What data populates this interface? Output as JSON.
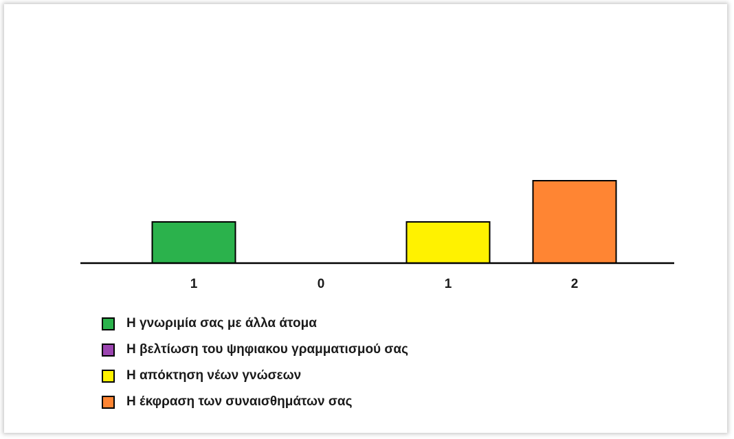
{
  "chart_data": {
    "type": "bar",
    "categories": [
      "Η γνωριμία σας με άλλα άτομα",
      "Η βελτίωση του ψηφιακου γραμματισμού σας",
      "Η απόκτηση νέων γνώσεων",
      "Η έκφραση των συναισθημάτων σας"
    ],
    "values": [
      1,
      0,
      1,
      2
    ],
    "tick_labels": [
      "1",
      "0",
      "1",
      "2"
    ],
    "colors": [
      "#2bb24c",
      "#9b45b0",
      "#fff200",
      "#ff8533"
    ],
    "ylim": [
      0,
      2
    ],
    "grid": false,
    "legend_position": "bottom-left",
    "title": "",
    "xlabel": "",
    "ylabel": ""
  },
  "legend": {
    "items": [
      {
        "label": "Η γνωριμία σας με άλλα άτομα",
        "color": "#2bb24c"
      },
      {
        "label": "Η βελτίωση του ψηφιακου γραμματισμού σας",
        "color": "#9b45b0"
      },
      {
        "label": "Η απόκτηση νέων γνώσεων",
        "color": "#fff200"
      },
      {
        "label": "Η έκφραση των συναισθημάτων σας",
        "color": "#ff8533"
      }
    ]
  }
}
